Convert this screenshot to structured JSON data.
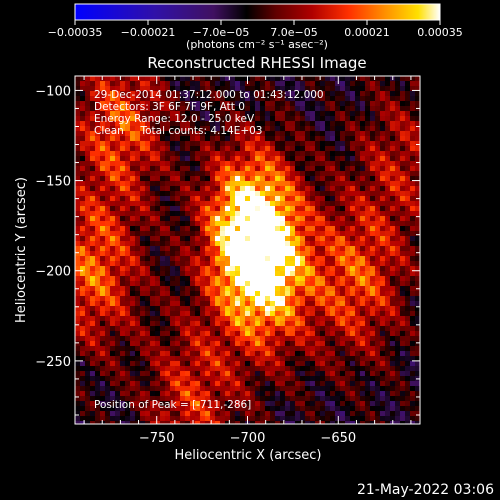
{
  "chart_data": {
    "type": "heatmap",
    "title": "Reconstructed RHESSI Image",
    "xlabel": "Heliocentric X (arcsec)",
    "ylabel": "Heliocentric Y (arcsec)",
    "xlim": [
      -795,
      -605
    ],
    "ylim": [
      -285,
      -92
    ],
    "xticks": [
      -750,
      -700,
      -650
    ],
    "xtick_labels": [
      "−750",
      "−700",
      "−650"
    ],
    "yticks": [
      -100,
      -150,
      -200,
      -250
    ],
    "ytick_labels": [
      "−100",
      "−150",
      "−200",
      "−250"
    ],
    "colorbar": {
      "range": [
        -0.00035,
        0.00035
      ],
      "ticks": [
        -0.00035,
        -0.00021,
        -7e-05,
        7e-05,
        0.00021,
        0.00035
      ],
      "tick_labels": [
        "−0.00035",
        "−0.00021",
        "−7.0e−05",
        "7.0e−05",
        "0.00021",
        "0.00035"
      ],
      "unit_label": "(photons cm⁻² s⁻¹ asec⁻²)",
      "colormap": [
        "#0000ff",
        "#3010a8",
        "#401060",
        "#000000",
        "#600000",
        "#b00000",
        "#ff3000",
        "#ff9000",
        "#ffe000",
        "#ffffff"
      ]
    },
    "peak": {
      "x": -711,
      "y": -286
    },
    "sources": [
      {
        "x": -698,
        "y": -175,
        "peak": 1.0
      },
      {
        "x": -690,
        "y": -205,
        "peak": 0.7
      },
      {
        "x": -770,
        "y": -120,
        "peak": 0.55
      },
      {
        "x": -785,
        "y": -200,
        "peak": 0.6
      },
      {
        "x": -640,
        "y": -205,
        "peak": 0.55
      },
      {
        "x": -615,
        "y": -140,
        "peak": 0.35
      },
      {
        "x": -730,
        "y": -270,
        "peak": 0.45
      }
    ],
    "annotations": {
      "time": "29-Dec-2014 01:37:12.000 to 01:43:12.000",
      "detectors": "Detectors: 3F 6F 7F 9F, Att 0",
      "energy": "Energy Range: 12.0 - 25.0 keV",
      "clean": "Clean     Total counts: 4.14E+03",
      "peak_text": "Position of Peak = [-711,-286]"
    }
  },
  "footer": {
    "timestamp": "21-May-2022 03:06"
  }
}
